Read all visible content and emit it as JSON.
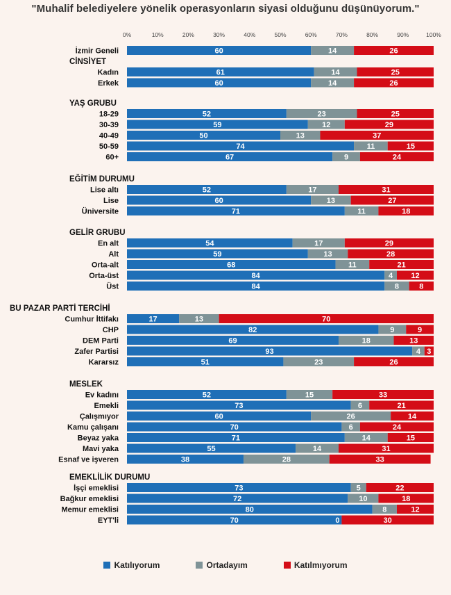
{
  "chart_data": {
    "type": "bar",
    "orientation": "horizontal",
    "stacked": true,
    "title": "\"Muhalif belediyelere yönelik operasyonların siyasi olduğunu düşünüyorum.\"",
    "x_ticks": [
      "0%",
      "10%",
      "20%",
      "30%",
      "40%",
      "50%",
      "60%",
      "70%",
      "80%",
      "90%",
      "100%"
    ],
    "xlim": [
      0,
      100
    ],
    "legend_position": "bottom",
    "series": [
      {
        "name": "Katılıyorum",
        "color": "#1f6fb7"
      },
      {
        "name": "Ortadayım",
        "color": "#7f9397"
      },
      {
        "name": "Katılmıyorum",
        "color": "#d40d17"
      }
    ],
    "groups": [
      {
        "heading": "",
        "rows": [
          {
            "label": "İzmir Geneli",
            "values": [
              60,
              14,
              26
            ]
          }
        ]
      },
      {
        "heading": "CİNSİYET",
        "rows": [
          {
            "label": "Kadın",
            "values": [
              61,
              14,
              25
            ]
          },
          {
            "label": "Erkek",
            "values": [
              60,
              14,
              26
            ]
          }
        ]
      },
      {
        "heading": "YAŞ GRUBU",
        "rows": [
          {
            "label": "18-29",
            "values": [
              52,
              23,
              25
            ]
          },
          {
            "label": "30-39",
            "values": [
              59,
              12,
              29
            ]
          },
          {
            "label": "40-49",
            "values": [
              50,
              13,
              37
            ]
          },
          {
            "label": "50-59",
            "values": [
              74,
              11,
              15
            ]
          },
          {
            "label": "60+",
            "values": [
              67,
              9,
              24
            ]
          }
        ]
      },
      {
        "heading": "EĞİTİM DURUMU",
        "rows": [
          {
            "label": "Lise altı",
            "values": [
              52,
              17,
              31
            ]
          },
          {
            "label": "Lise",
            "values": [
              60,
              13,
              27
            ]
          },
          {
            "label": "Üniversite",
            "values": [
              71,
              11,
              18
            ]
          }
        ]
      },
      {
        "heading": "GELİR GRUBU",
        "rows": [
          {
            "label": "En alt",
            "values": [
              54,
              17,
              29
            ]
          },
          {
            "label": "Alt",
            "values": [
              59,
              13,
              28
            ]
          },
          {
            "label": "Orta-alt",
            "values": [
              68,
              11,
              21
            ]
          },
          {
            "label": "Orta-üst",
            "values": [
              84,
              4,
              12
            ]
          },
          {
            "label": "Üst",
            "values": [
              84,
              8,
              8
            ]
          }
        ]
      },
      {
        "heading": "BU PAZAR PARTİ TERCİHİ",
        "rows": [
          {
            "label": "Cumhur İttifakı",
            "values": [
              17,
              13,
              70
            ]
          },
          {
            "label": "CHP",
            "values": [
              82,
              9,
              9
            ]
          },
          {
            "label": "DEM Parti",
            "values": [
              69,
              18,
              13
            ]
          },
          {
            "label": "Zafer Partisi",
            "values": [
              93,
              4,
              3
            ]
          },
          {
            "label": "Kararsız",
            "values": [
              51,
              23,
              26
            ]
          }
        ]
      },
      {
        "heading": "MESLEK",
        "rows": [
          {
            "label": "Ev kadını",
            "values": [
              52,
              15,
              33
            ]
          },
          {
            "label": "Emekli",
            "values": [
              73,
              6,
              21
            ]
          },
          {
            "label": "Çalışmıyor",
            "values": [
              60,
              26,
              14
            ]
          },
          {
            "label": "Kamu çalışanı",
            "values": [
              70,
              6,
              24
            ]
          },
          {
            "label": "Beyaz yaka",
            "values": [
              71,
              14,
              15
            ]
          },
          {
            "label": "Mavi yaka",
            "values": [
              55,
              14,
              31
            ]
          },
          {
            "label": "Esnaf ve işveren",
            "values": [
              38,
              28,
              33
            ]
          }
        ]
      },
      {
        "heading": "EMEKLİLİK DURUMU",
        "rows": [
          {
            "label": "İşçi emeklisi",
            "values": [
              73,
              5,
              22
            ]
          },
          {
            "label": "Bağkur emeklisi",
            "values": [
              72,
              10,
              18
            ]
          },
          {
            "label": "Memur emeklisi",
            "values": [
              80,
              8,
              12
            ]
          },
          {
            "label": "EYT'li",
            "values": [
              70,
              0,
              30
            ]
          }
        ]
      }
    ]
  }
}
